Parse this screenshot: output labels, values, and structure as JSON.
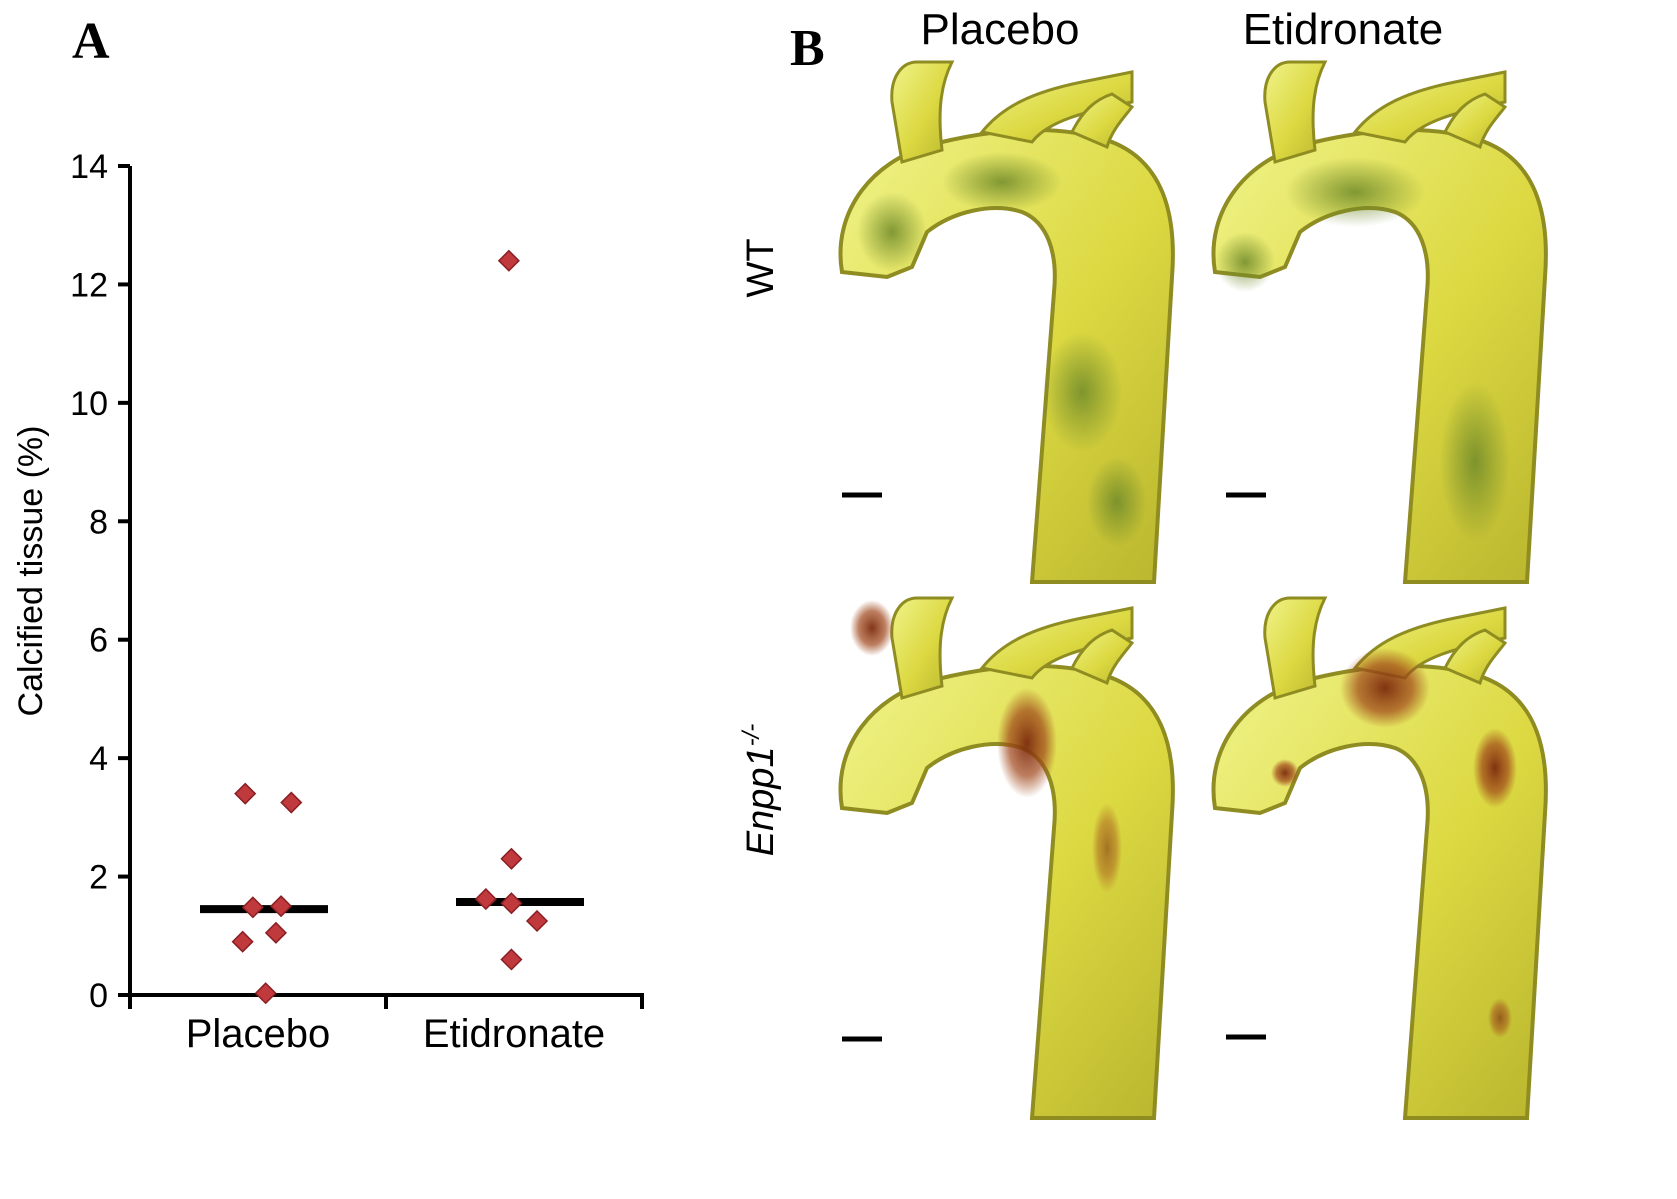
{
  "panel_a": {
    "letter": "A"
  },
  "panel_b": {
    "letter": "B",
    "columns": [
      "Placebo",
      "Etidronate"
    ],
    "rows": [
      "WT",
      "Enpp1"
    ],
    "row2_superscript": "-/-"
  },
  "colors": {
    "point_fill": "#c0393d",
    "point_stroke": "#8a1e22",
    "median_bar": "#000000",
    "axis": "#000000",
    "vessel_light": "#eaf07a",
    "vessel_mid": "#d9d63a",
    "vessel_dark": "#7d8a25",
    "calcification": "#8a3a12"
  },
  "chart_data": {
    "type": "scatter",
    "title": "",
    "xlabel": "",
    "ylabel": "Calcified tissue (%)",
    "categories": [
      "Placebo",
      "Etidronate"
    ],
    "ylim": [
      0,
      14
    ],
    "yticks": [
      0,
      2,
      4,
      6,
      8,
      10,
      12,
      14
    ],
    "grid": false,
    "points": [
      {
        "category": "Placebo",
        "x_offset": -0.05,
        "y": 3.4
      },
      {
        "category": "Placebo",
        "x_offset": 0.13,
        "y": 3.25
      },
      {
        "category": "Placebo",
        "x_offset": -0.02,
        "y": 1.48
      },
      {
        "category": "Placebo",
        "x_offset": 0.09,
        "y": 1.5
      },
      {
        "category": "Placebo",
        "x_offset": -0.06,
        "y": 0.9
      },
      {
        "category": "Placebo",
        "x_offset": 0.07,
        "y": 1.05
      },
      {
        "category": "Placebo",
        "x_offset": 0.03,
        "y": 0.03
      },
      {
        "category": "Etidronate",
        "x_offset": -0.02,
        "y": 12.4
      },
      {
        "category": "Etidronate",
        "x_offset": -0.01,
        "y": 2.3
      },
      {
        "category": "Etidronate",
        "x_offset": -0.11,
        "y": 1.62
      },
      {
        "category": "Etidronate",
        "x_offset": -0.01,
        "y": 1.55
      },
      {
        "category": "Etidronate",
        "x_offset": 0.09,
        "y": 1.25
      },
      {
        "category": "Etidronate",
        "x_offset": -0.01,
        "y": 0.6
      }
    ],
    "medians": [
      {
        "category": "Placebo",
        "y": 1.45
      },
      {
        "category": "Etidronate",
        "y": 1.57
      }
    ]
  }
}
